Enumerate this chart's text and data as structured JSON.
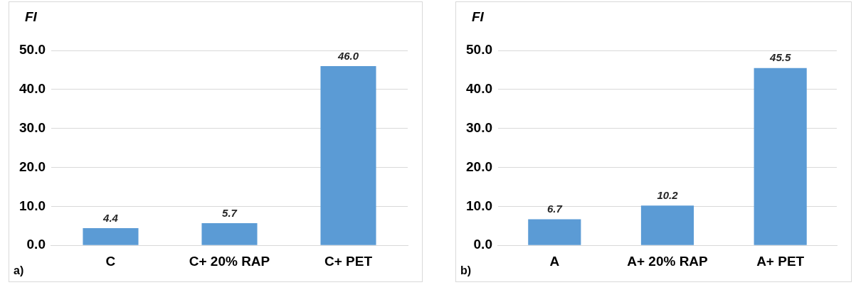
{
  "chart_data": [
    {
      "type": "bar",
      "ylabel": "FI",
      "categories": [
        "C",
        "C+ 20% RAP",
        "C+ PET"
      ],
      "values": [
        4.4,
        5.7,
        46.0
      ],
      "value_labels": [
        "4.4",
        "5.7",
        "46.0"
      ],
      "color": "#5b9bd5",
      "ylim": [
        0,
        50
      ],
      "yticks": [
        {
          "value": 0,
          "label": "0.0"
        },
        {
          "value": 10,
          "label": "10.0"
        },
        {
          "value": 20,
          "label": "20.0"
        },
        {
          "value": 30,
          "label": "30.0"
        },
        {
          "value": 40,
          "label": "40.0"
        },
        {
          "value": 50,
          "label": "50.0"
        }
      ],
      "grid": "y",
      "annotations": [
        "a)"
      ]
    },
    {
      "type": "bar",
      "ylabel": "FI",
      "categories": [
        "A",
        "A+ 20% RAP",
        "A+ PET"
      ],
      "values": [
        6.7,
        10.2,
        45.5
      ],
      "value_labels": [
        "6.7",
        "10.2",
        "45.5"
      ],
      "color": "#5b9bd5",
      "ylim": [
        0,
        50
      ],
      "yticks": [
        {
          "value": 0,
          "label": "0.0"
        },
        {
          "value": 10,
          "label": "10.0"
        },
        {
          "value": 20,
          "label": "20.0"
        },
        {
          "value": 30,
          "label": "30.0"
        },
        {
          "value": 40,
          "label": "40.0"
        },
        {
          "value": 50,
          "label": "50.0"
        }
      ],
      "grid": "y",
      "annotations": [
        "b)"
      ]
    }
  ]
}
